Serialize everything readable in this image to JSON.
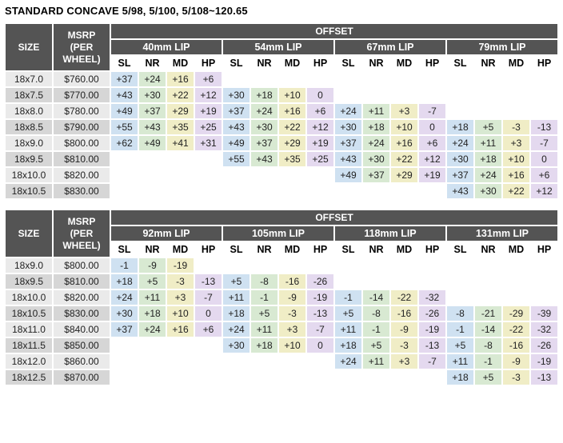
{
  "title": "STANDARD CONCAVE 5/98, 5/100, 5/108~120.65",
  "headers": {
    "size": "SIZE",
    "msrp": "MSRP (PER WHEEL)",
    "offset": "OFFSET",
    "sub_cols": [
      "SL",
      "NR",
      "MD",
      "HP"
    ]
  },
  "colors": {
    "header_bg": "#545454",
    "header_text": "#ffffff",
    "sl_bg": "#cfe1f1",
    "nr_bg": "#d8e9d2",
    "md_bg": "#f0edc6",
    "hp_bg": "#e4d9ef",
    "row_light_bg": "#eaeaea",
    "row_dark_bg": "#d6d6d6"
  },
  "chart_data": [
    {
      "type": "table",
      "title": "STANDARD CONCAVE 5/98, 5/100, 5/108~120.65",
      "lip_groups": [
        "40mm LIP",
        "54mm LIP",
        "67mm LIP",
        "79mm LIP"
      ],
      "sub_columns": [
        "SL",
        "NR",
        "MD",
        "HP"
      ],
      "rows": [
        {
          "size": "18x7.0",
          "msrp": "$760.00",
          "offsets": [
            "+37",
            "+24",
            "+16",
            "+6",
            "",
            "",
            "",
            "",
            "",
            "",
            "",
            "",
            "",
            "",
            "",
            ""
          ]
        },
        {
          "size": "18x7.5",
          "msrp": "$770.00",
          "offsets": [
            "+43",
            "+30",
            "+22",
            "+12",
            "+30",
            "+18",
            "+10",
            "0",
            "",
            "",
            "",
            "",
            "",
            "",
            "",
            ""
          ]
        },
        {
          "size": "18x8.0",
          "msrp": "$780.00",
          "offsets": [
            "+49",
            "+37",
            "+29",
            "+19",
            "+37",
            "+24",
            "+16",
            "+6",
            "+24",
            "+11",
            "+3",
            "-7",
            "",
            "",
            "",
            ""
          ]
        },
        {
          "size": "18x8.5",
          "msrp": "$790.00",
          "offsets": [
            "+55",
            "+43",
            "+35",
            "+25",
            "+43",
            "+30",
            "+22",
            "+12",
            "+30",
            "+18",
            "+10",
            "0",
            "+18",
            "+5",
            "-3",
            "-13"
          ]
        },
        {
          "size": "18x9.0",
          "msrp": "$800.00",
          "offsets": [
            "+62",
            "+49",
            "+41",
            "+31",
            "+49",
            "+37",
            "+29",
            "+19",
            "+37",
            "+24",
            "+16",
            "+6",
            "+24",
            "+11",
            "+3",
            "-7"
          ]
        },
        {
          "size": "18x9.5",
          "msrp": "$810.00",
          "offsets": [
            "",
            "",
            "",
            "",
            "+55",
            "+43",
            "+35",
            "+25",
            "+43",
            "+30",
            "+22",
            "+12",
            "+30",
            "+18",
            "+10",
            "0"
          ]
        },
        {
          "size": "18x10.0",
          "msrp": "$820.00",
          "offsets": [
            "",
            "",
            "",
            "",
            "",
            "",
            "",
            "",
            "+49",
            "+37",
            "+29",
            "+19",
            "+37",
            "+24",
            "+16",
            "+6"
          ]
        },
        {
          "size": "18x10.5",
          "msrp": "$830.00",
          "offsets": [
            "",
            "",
            "",
            "",
            "",
            "",
            "",
            "",
            "",
            "",
            "",
            "",
            "+43",
            "+30",
            "+22",
            "+12"
          ]
        }
      ]
    },
    {
      "type": "table",
      "title": "STANDARD CONCAVE 5/98, 5/100, 5/108~120.65 (continued)",
      "lip_groups": [
        "92mm LIP",
        "105mm LIP",
        "118mm LIP",
        "131mm LIP"
      ],
      "sub_columns": [
        "SL",
        "NR",
        "MD",
        "HP"
      ],
      "rows": [
        {
          "size": "18x9.0",
          "msrp": "$800.00",
          "offsets": [
            "-1",
            "-9",
            "-19",
            "",
            "",
            "",
            "",
            "",
            "",
            "",
            "",
            "",
            "",
            "",
            "",
            ""
          ]
        },
        {
          "size": "18x9.5",
          "msrp": "$810.00",
          "offsets": [
            "+18",
            "+5",
            "-3",
            "-13",
            "+5",
            "-8",
            "-16",
            "-26",
            "",
            "",
            "",
            "",
            "",
            "",
            "",
            ""
          ]
        },
        {
          "size": "18x10.0",
          "msrp": "$820.00",
          "offsets": [
            "+24",
            "+11",
            "+3",
            "-7",
            "+11",
            "-1",
            "-9",
            "-19",
            "-1",
            "-14",
            "-22",
            "-32",
            "",
            "",
            "",
            ""
          ]
        },
        {
          "size": "18x10.5",
          "msrp": "$830.00",
          "offsets": [
            "+30",
            "+18",
            "+10",
            "0",
            "+18",
            "+5",
            "-3",
            "-13",
            "+5",
            "-8",
            "-16",
            "-26",
            "-8",
            "-21",
            "-29",
            "-39"
          ]
        },
        {
          "size": "18x11.0",
          "msrp": "$840.00",
          "offsets": [
            "+37",
            "+24",
            "+16",
            "+6",
            "+24",
            "+11",
            "+3",
            "-7",
            "+11",
            "-1",
            "-9",
            "-19",
            "-1",
            "-14",
            "-22",
            "-32"
          ]
        },
        {
          "size": "18x11.5",
          "msrp": "$850.00",
          "offsets": [
            "",
            "",
            "",
            "",
            "+30",
            "+18",
            "+10",
            "0",
            "+18",
            "+5",
            "-3",
            "-13",
            "+5",
            "-8",
            "-16",
            "-26"
          ]
        },
        {
          "size": "18x12.0",
          "msrp": "$860.00",
          "offsets": [
            "",
            "",
            "",
            "",
            "",
            "",
            "",
            "",
            "+24",
            "+11",
            "+3",
            "-7",
            "+11",
            "-1",
            "-9",
            "-19"
          ]
        },
        {
          "size": "18x12.5",
          "msrp": "$870.00",
          "offsets": [
            "",
            "",
            "",
            "",
            "",
            "",
            "",
            "",
            "",
            "",
            "",
            "",
            "+18",
            "+5",
            "-3",
            "-13"
          ]
        }
      ]
    }
  ]
}
